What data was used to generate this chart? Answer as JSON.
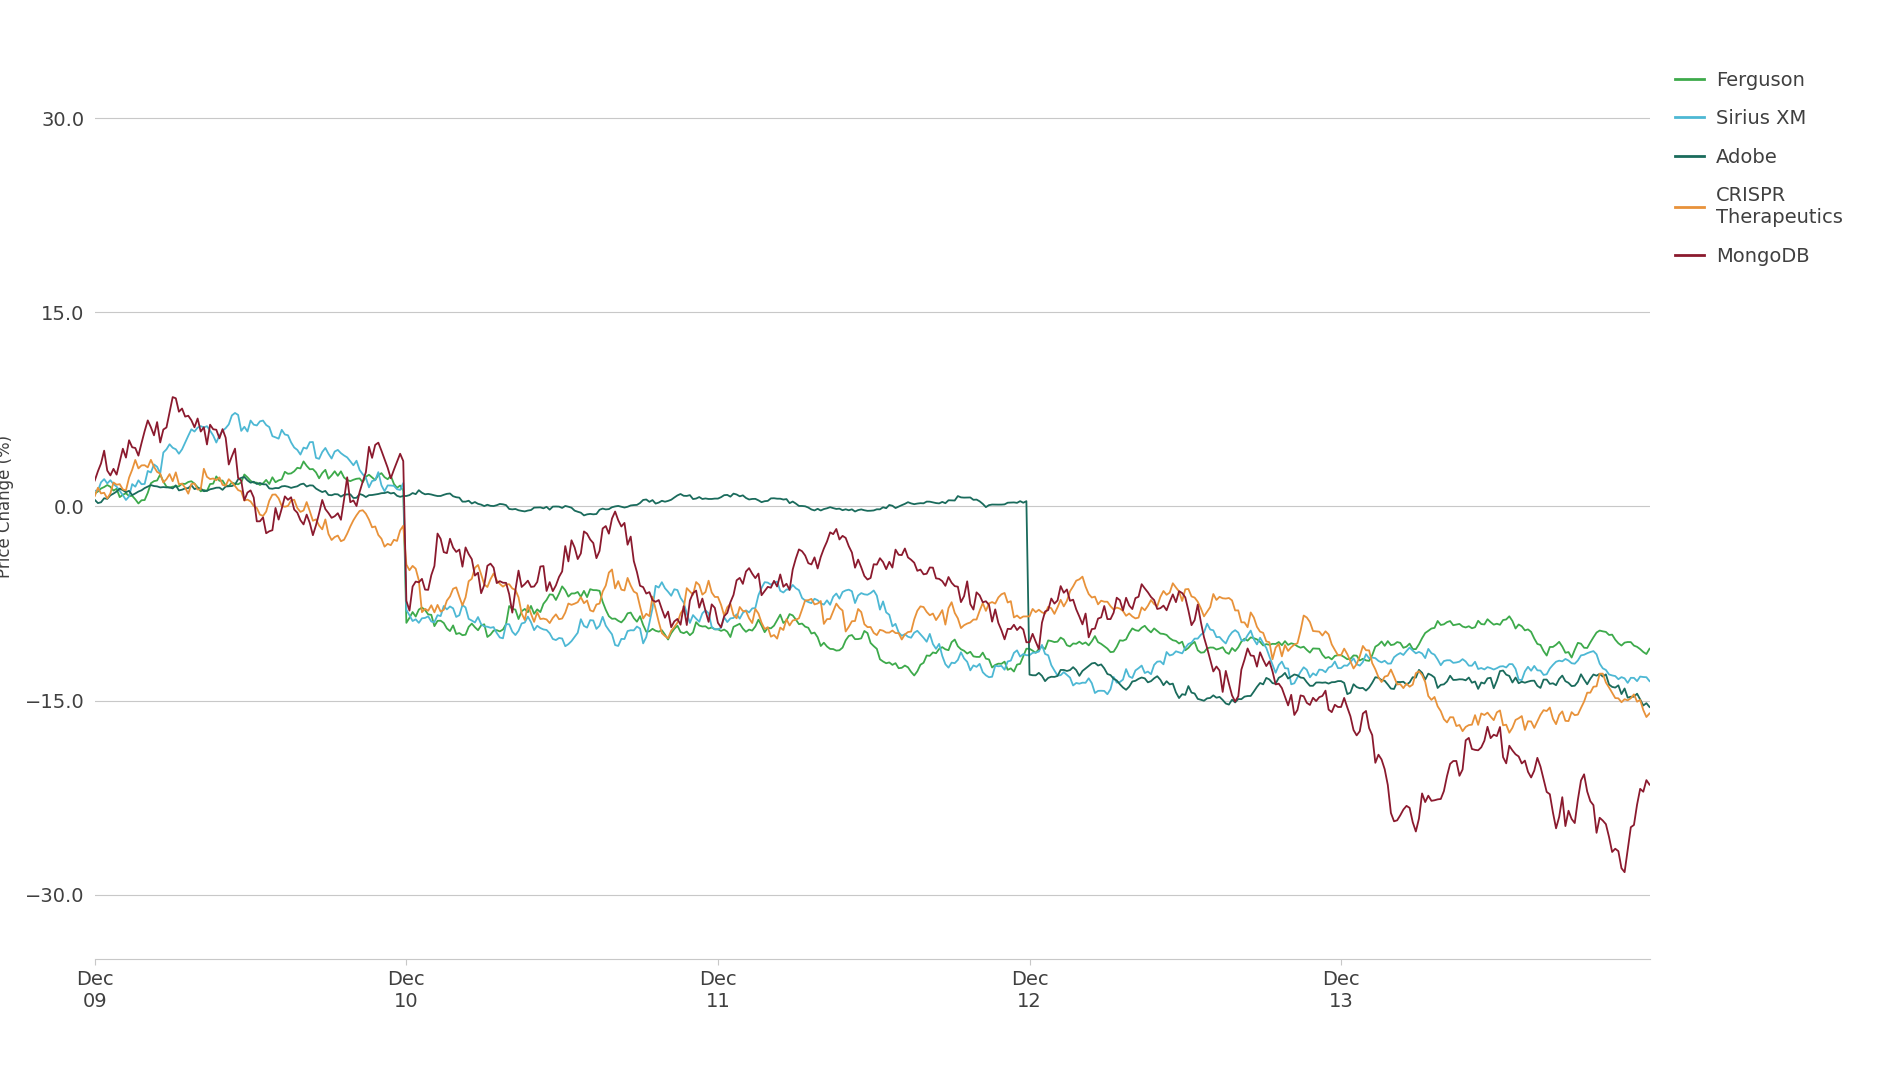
{
  "title": "",
  "ylabel": "Price Change (%)",
  "ylim": [
    -35,
    35
  ],
  "yticks": [
    -30.0,
    -15.0,
    0.0,
    15.0,
    30.0
  ],
  "background_color": "#ffffff",
  "grid_color": "#c8c8c8",
  "series_colors": [
    "#3daa4b",
    "#4db8d4",
    "#1a6b5c",
    "#e8923a",
    "#8b1a2e"
  ],
  "legend_labels": [
    "Ferguson",
    "Sirius XM",
    "Adobe",
    "CRISPR\nTherapeutics",
    "MongoDB"
  ],
  "xtick_labels": [
    "Dec\n09",
    "Dec\n10",
    "Dec\n11",
    "Dec\n12",
    "Dec\n13"
  ],
  "text_color": "#404040",
  "tick_fontsize": 14,
  "legend_fontsize": 14,
  "ylabel_fontsize": 12
}
